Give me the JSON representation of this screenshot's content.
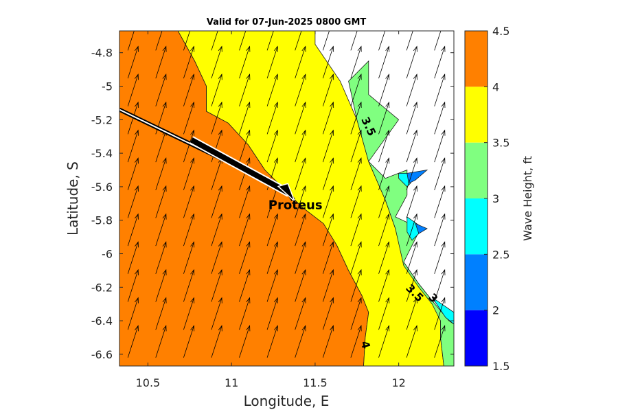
{
  "chart_data": {
    "type": "contour",
    "title": "Valid for 07-Jun-2025 0800 GMT",
    "xlabel": "Longitude, E",
    "ylabel": "Latitude, S",
    "xlim": [
      10.33,
      12.33
    ],
    "ylim": [
      -6.67,
      -4.67
    ],
    "xticks": [
      10.5,
      11,
      11.5,
      12
    ],
    "yticks": [
      -4.8,
      -5,
      -5.2,
      -5.4,
      -5.6,
      -5.8,
      -6,
      -6.2,
      -6.4,
      -6.6
    ],
    "colorbar": {
      "label": "Wave Height, ft",
      "levels": [
        1.5,
        2,
        2.5,
        3,
        3.5,
        4,
        4.5
      ],
      "colors": [
        "#0000ff",
        "#0080ff",
        "#00ffff",
        "#80ff80",
        "#ffff00",
        "#ff8000"
      ]
    },
    "contour_labels": [
      {
        "text": "3.5",
        "lon": 11.8,
        "lat": -5.25,
        "rotation": 65
      },
      {
        "text": "3.5",
        "lon": 12.08,
        "lat": -6.25,
        "rotation": 45
      },
      {
        "text": "3",
        "lon": 12.19,
        "lat": -6.28,
        "rotation": 45
      },
      {
        "text": "4",
        "lon": 11.78,
        "lat": -6.55,
        "rotation": 75
      }
    ],
    "vessel": {
      "name": "Proteus",
      "lon": 11.37,
      "lat": -5.68
    },
    "track": [
      [
        10.33,
        -5.14
      ],
      [
        11.33,
        -5.62
      ],
      [
        11.37,
        -5.68
      ]
    ],
    "regions": [
      {
        "level": "4-4.5",
        "color": "#ff8000",
        "points": [
          [
            10.33,
            -4.67
          ],
          [
            10.68,
            -4.67
          ],
          [
            10.78,
            -4.85
          ],
          [
            10.85,
            -5.0
          ],
          [
            10.85,
            -5.15
          ],
          [
            10.98,
            -5.22
          ],
          [
            11.1,
            -5.35
          ],
          [
            11.2,
            -5.5
          ],
          [
            11.33,
            -5.63
          ],
          [
            11.42,
            -5.72
          ],
          [
            11.55,
            -5.82
          ],
          [
            11.63,
            -5.95
          ],
          [
            11.7,
            -6.1
          ],
          [
            11.78,
            -6.25
          ],
          [
            11.82,
            -6.35
          ],
          [
            11.8,
            -6.5
          ],
          [
            11.79,
            -6.67
          ],
          [
            10.33,
            -6.67
          ]
        ]
      },
      {
        "level": "3.5-4",
        "color": "#ffff00",
        "points": [
          [
            10.68,
            -4.67
          ],
          [
            11.5,
            -4.67
          ],
          [
            11.5,
            -4.75
          ],
          [
            11.65,
            -4.97
          ],
          [
            11.75,
            -5.2
          ],
          [
            11.82,
            -5.45
          ],
          [
            11.92,
            -5.68
          ],
          [
            11.98,
            -5.85
          ],
          [
            12.03,
            -6.05
          ],
          [
            12.12,
            -6.18
          ],
          [
            12.2,
            -6.28
          ],
          [
            12.25,
            -6.4
          ],
          [
            12.25,
            -6.5
          ],
          [
            12.27,
            -6.67
          ],
          [
            11.79,
            -6.67
          ],
          [
            11.8,
            -6.5
          ],
          [
            11.82,
            -6.35
          ],
          [
            11.78,
            -6.25
          ],
          [
            11.7,
            -6.1
          ],
          [
            11.63,
            -5.95
          ],
          [
            11.55,
            -5.82
          ],
          [
            11.42,
            -5.72
          ],
          [
            11.33,
            -5.63
          ],
          [
            11.2,
            -5.5
          ],
          [
            11.1,
            -5.35
          ],
          [
            10.98,
            -5.22
          ],
          [
            10.85,
            -5.15
          ],
          [
            10.85,
            -5.0
          ],
          [
            10.78,
            -4.85
          ]
        ]
      },
      {
        "level": "3-3.5",
        "color": "#80ff80",
        "points": [
          [
            11.7,
            -4.97
          ],
          [
            11.82,
            -4.85
          ],
          [
            11.82,
            -5.05
          ],
          [
            12.0,
            -5.2
          ],
          [
            11.82,
            -5.45
          ],
          [
            11.92,
            -5.55
          ],
          [
            12.05,
            -5.5
          ],
          [
            12.05,
            -5.65
          ],
          [
            11.98,
            -5.78
          ],
          [
            12.13,
            -5.85
          ],
          [
            12.08,
            -5.95
          ],
          [
            12.03,
            -6.05
          ],
          [
            12.12,
            -6.18
          ],
          [
            12.2,
            -6.28
          ],
          [
            12.3,
            -6.4
          ],
          [
            12.33,
            -6.42
          ],
          [
            12.33,
            -6.67
          ],
          [
            12.27,
            -6.67
          ],
          [
            12.25,
            -6.5
          ],
          [
            12.25,
            -6.4
          ],
          [
            12.2,
            -6.3
          ],
          [
            12.12,
            -6.2
          ],
          [
            12.03,
            -6.07
          ],
          [
            11.98,
            -5.85
          ],
          [
            11.92,
            -5.68
          ],
          [
            11.82,
            -5.45
          ],
          [
            11.75,
            -5.2
          ]
        ]
      },
      {
        "level": "2.5-3",
        "color": "#00ffff",
        "points": [
          [
            12.0,
            -5.52
          ],
          [
            12.1,
            -5.52
          ],
          [
            12.07,
            -5.58
          ],
          [
            12.05,
            -5.6
          ],
          [
            12.0,
            -5.55
          ]
        ]
      },
      {
        "level": "2.5-3",
        "color": "#00ffff",
        "points": [
          [
            12.05,
            -5.78
          ],
          [
            12.15,
            -5.85
          ],
          [
            12.08,
            -5.92
          ],
          [
            12.05,
            -5.87
          ]
        ]
      },
      {
        "level": "2.5-3",
        "color": "#00ffff",
        "points": [
          [
            12.2,
            -6.26
          ],
          [
            12.33,
            -6.35
          ],
          [
            12.33,
            -6.42
          ],
          [
            12.28,
            -6.38
          ]
        ]
      },
      {
        "level": "2-2.5",
        "color": "#0080ff",
        "points": [
          [
            12.05,
            -5.52
          ],
          [
            12.17,
            -5.5
          ],
          [
            12.1,
            -5.56
          ],
          [
            12.06,
            -5.58
          ]
        ]
      },
      {
        "level": "2-2.5",
        "color": "#0080ff",
        "points": [
          [
            12.1,
            -5.82
          ],
          [
            12.17,
            -5.85
          ],
          [
            12.12,
            -5.88
          ]
        ]
      }
    ],
    "wind": {
      "direction_deg": 72,
      "arrow_length_deg": 0.2
    }
  },
  "icons": {
    "vessel": "ship-marker-icon",
    "track": "track-line-icon"
  }
}
